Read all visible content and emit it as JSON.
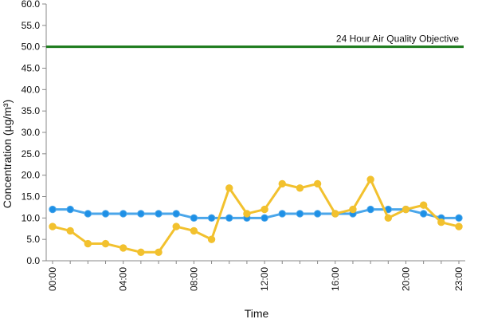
{
  "chart_data": {
    "type": "line",
    "xlabel": "Time",
    "ylabel": "Concentration (µg/m³)",
    "ylim": [
      0,
      60
    ],
    "y_ticks": [
      "0.0",
      "5.0",
      "10.0",
      "15.0",
      "20.0",
      "25.0",
      "30.0",
      "35.0",
      "40.0",
      "45.0",
      "50.0",
      "55.0",
      "60.0"
    ],
    "x_ticks": [
      "00:00",
      "04:00",
      "08:00",
      "12:00",
      "16:00",
      "20:00",
      "23:00"
    ],
    "x_tick_hours": [
      0,
      4,
      8,
      12,
      16,
      20,
      23
    ],
    "grid": false,
    "series": [
      {
        "color": "#1e90e6",
        "line_color": "#4aa6ea",
        "values": [
          12,
          12,
          11,
          11,
          11,
          11,
          11,
          11,
          10,
          10,
          10,
          10,
          10,
          11,
          11,
          11,
          11,
          11,
          12,
          12,
          12,
          11,
          10,
          10
        ]
      },
      {
        "color": "#f2c12e",
        "line_color": "#f2c12e",
        "values": [
          8,
          7,
          4,
          4,
          3,
          2,
          2,
          8,
          7,
          5,
          17,
          11,
          12,
          18,
          17,
          18,
          11,
          12,
          19,
          10,
          12,
          13,
          9,
          8
        ]
      }
    ],
    "reference_line": {
      "value": 50,
      "label": "24 Hour Air Quality Objective",
      "color": "#1a7a1a"
    }
  }
}
